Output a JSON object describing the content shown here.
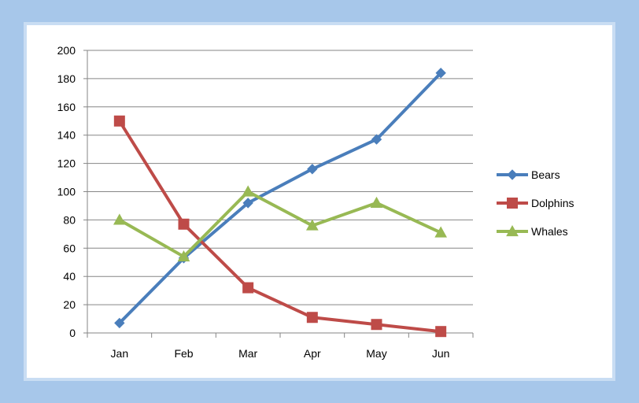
{
  "chart_data": {
    "type": "line",
    "categories": [
      "Jan",
      "Feb",
      "Mar",
      "Apr",
      "May",
      "Jun"
    ],
    "ylim": [
      0,
      200
    ],
    "yticks": [
      0,
      20,
      40,
      60,
      80,
      100,
      120,
      140,
      160,
      180,
      200
    ],
    "grid": true,
    "legend_position": "right",
    "series": [
      {
        "name": "Bears",
        "values": [
          7,
          53,
          92,
          116,
          137,
          184
        ],
        "color": "#4a7ebb",
        "marker": "diamond"
      },
      {
        "name": "Dolphins",
        "values": [
          150,
          77,
          32,
          11,
          6,
          1
        ],
        "color": "#be4b48",
        "marker": "square"
      },
      {
        "name": "Whales",
        "values": [
          80,
          54,
          100,
          76,
          92,
          71
        ],
        "color": "#98b954",
        "marker": "triangle"
      }
    ]
  }
}
